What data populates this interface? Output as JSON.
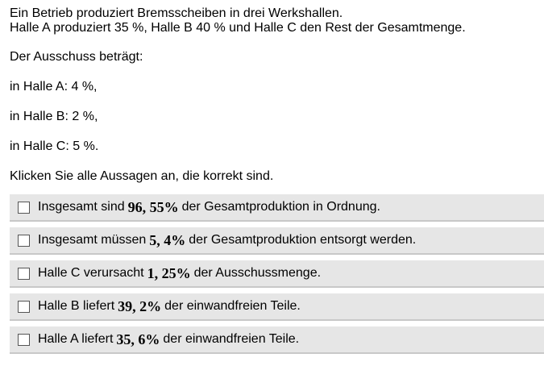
{
  "intro": {
    "line1": "Ein Betrieb produziert Bremsscheiben in drei Werkshallen.",
    "line2": "Halle A produziert 35 %, Halle B 40 % und Halle C den Rest der Gesamtmenge."
  },
  "ausschuss": "Der Ausschuss beträgt:",
  "halle_a": "in Halle A: 4 %,",
  "halle_b": "in Halle B: 2 %,",
  "halle_c": "in Halle C: 5 %.",
  "instruction": "Klicken Sie alle Aussagen an, die korrekt sind.",
  "options": [
    {
      "before": "Insgesamt sind",
      "math": "96, 55%",
      "after": "der Gesamtproduktion in Ordnung."
    },
    {
      "before": "Insgesamt müssen",
      "math": "5, 4%",
      "after": "der Gesamtproduktion entsorgt werden."
    },
    {
      "before": "Halle C verursacht",
      "math": "1, 25%",
      "after": "der Ausschussmenge."
    },
    {
      "before": "Halle B liefert",
      "math": "39, 2%",
      "after": "der einwandfreien Teile."
    },
    {
      "before": "Halle A liefert",
      "math": "35, 6%",
      "after": "der einwandfreien Teile."
    }
  ]
}
